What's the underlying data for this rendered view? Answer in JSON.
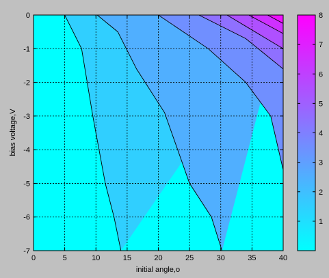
{
  "window": {
    "background": "#c0c0c0"
  },
  "chart_data": {
    "type": "contour",
    "xlabel": "initial angle,o",
    "ylabel": "bias voltage,V",
    "xlim": [
      0,
      40
    ],
    "ylim": [
      -7,
      0
    ],
    "x_ticks": [
      0,
      5,
      10,
      15,
      20,
      25,
      30,
      35,
      40
    ],
    "x_tick_labels": [
      "0",
      "5",
      "10",
      "15",
      "20",
      "25",
      "30",
      "35",
      "40"
    ],
    "y_ticks": [
      0,
      -1,
      -2,
      -3,
      -4,
      -5,
      -6,
      -7
    ],
    "y_tick_labels": [
      "0",
      "-1",
      "-2",
      "-3",
      "-4",
      "-5",
      "-6",
      "-7"
    ],
    "grid": true,
    "colormap": "cool",
    "colormap_colors": [
      "#00ffff",
      "#ff00ff"
    ],
    "colorbar": {
      "range": [
        0,
        8
      ],
      "ticks": [
        1,
        2,
        3,
        4,
        5,
        6,
        7,
        8
      ],
      "tick_labels": [
        "1",
        "2",
        "3",
        "4",
        "5",
        "6",
        "7",
        "8"
      ],
      "placement": "right"
    },
    "levels": [
      1,
      2,
      3,
      4,
      5,
      6,
      7
    ],
    "contours": [
      {
        "level": 1,
        "points": [
          [
            5,
            0
          ],
          [
            7.7,
            -1
          ],
          [
            9.5,
            -3
          ],
          [
            11.5,
            -5
          ],
          [
            12.9,
            -6
          ],
          [
            14,
            -7
          ]
        ]
      },
      {
        "level": 2,
        "points": [
          [
            10.2,
            0
          ],
          [
            13.5,
            -0.5
          ],
          [
            16.5,
            -1.6
          ],
          [
            21,
            -2.9
          ],
          [
            25,
            -5
          ],
          [
            28.5,
            -6
          ],
          [
            30.2,
            -7
          ]
        ]
      },
      {
        "level": 3,
        "points": [
          [
            20,
            0
          ],
          [
            28,
            -1
          ],
          [
            34,
            -2
          ],
          [
            38,
            -3
          ],
          [
            40,
            -4.6
          ]
        ]
      },
      {
        "level": 4,
        "points": [
          [
            26.5,
            0
          ],
          [
            34,
            -0.7
          ],
          [
            40,
            -1.6
          ]
        ]
      },
      {
        "level": 5,
        "points": [
          [
            31,
            0
          ],
          [
            40,
            -1
          ]
        ]
      },
      {
        "level": 6,
        "points": [
          [
            34.5,
            0
          ],
          [
            40,
            -0.55
          ]
        ]
      },
      {
        "level": 7,
        "points": [
          [
            37.5,
            0
          ],
          [
            40,
            -0.25
          ]
        ]
      }
    ],
    "field_samples": [
      {
        "x": 0,
        "y": -7,
        "z": 0.2
      },
      {
        "x": 15,
        "y": -3,
        "z": 1.8
      },
      {
        "x": 30,
        "y": -5,
        "z": 2.4
      },
      {
        "x": 40,
        "y": 0,
        "z": 8
      }
    ]
  }
}
